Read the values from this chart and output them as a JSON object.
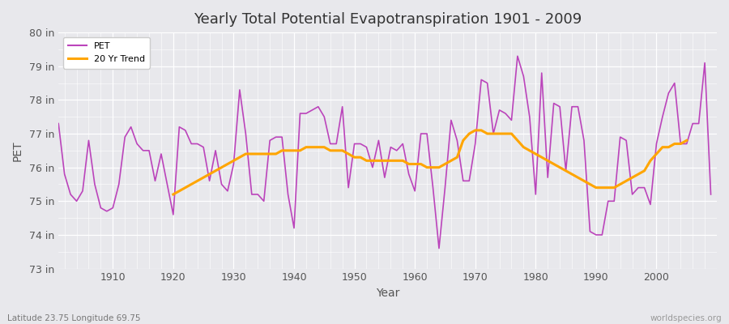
{
  "title": "Yearly Total Potential Evapotranspiration 1901 - 2009",
  "xlabel": "Year",
  "ylabel": "PET",
  "bottom_left_label": "Latitude 23.75 Longitude 69.75",
  "bottom_right_label": "worldspecies.org",
  "pet_color": "#BB44BB",
  "trend_color": "#FFA500",
  "background_color": "#E8E8EC",
  "fig_color": "#E8E8EC",
  "ylim": [
    73,
    80
  ],
  "yticks": [
    73,
    74,
    75,
    76,
    77,
    78,
    79,
    80
  ],
  "ytick_labels": [
    "73 in",
    "74 in",
    "75 in",
    "76 in",
    "77 in",
    "78 in",
    "79 in",
    "80 in"
  ],
  "xlim": [
    1901,
    2010
  ],
  "xticks": [
    1910,
    1920,
    1930,
    1940,
    1950,
    1960,
    1970,
    1980,
    1990,
    2000
  ],
  "years": [
    1901,
    1902,
    1903,
    1904,
    1905,
    1906,
    1907,
    1908,
    1909,
    1910,
    1911,
    1912,
    1913,
    1914,
    1915,
    1916,
    1917,
    1918,
    1919,
    1920,
    1921,
    1922,
    1923,
    1924,
    1925,
    1926,
    1927,
    1928,
    1929,
    1930,
    1931,
    1932,
    1933,
    1934,
    1935,
    1936,
    1937,
    1938,
    1939,
    1940,
    1941,
    1942,
    1943,
    1944,
    1945,
    1946,
    1947,
    1948,
    1949,
    1950,
    1951,
    1952,
    1953,
    1954,
    1955,
    1956,
    1957,
    1958,
    1959,
    1960,
    1961,
    1962,
    1963,
    1964,
    1965,
    1966,
    1967,
    1968,
    1969,
    1970,
    1971,
    1972,
    1973,
    1974,
    1975,
    1976,
    1977,
    1978,
    1979,
    1980,
    1981,
    1982,
    1983,
    1984,
    1985,
    1986,
    1987,
    1988,
    1989,
    1990,
    1991,
    1992,
    1993,
    1994,
    1995,
    1996,
    1997,
    1998,
    1999,
    2000,
    2001,
    2002,
    2003,
    2004,
    2005,
    2006,
    2007,
    2008,
    2009
  ],
  "pet_values": [
    77.3,
    75.8,
    75.2,
    75.0,
    75.3,
    76.8,
    75.5,
    74.8,
    74.7,
    74.8,
    75.5,
    76.9,
    77.2,
    76.7,
    76.5,
    76.5,
    75.6,
    76.4,
    75.5,
    74.6,
    77.2,
    77.1,
    76.7,
    76.7,
    76.6,
    75.6,
    76.5,
    75.5,
    75.3,
    76.1,
    78.3,
    77.0,
    75.2,
    75.2,
    75.0,
    76.8,
    76.9,
    76.9,
    75.2,
    74.2,
    77.6,
    77.6,
    77.7,
    77.8,
    77.5,
    76.7,
    76.7,
    77.8,
    75.4,
    76.7,
    76.7,
    76.6,
    76.0,
    76.8,
    75.7,
    76.6,
    76.5,
    76.7,
    75.8,
    75.3,
    77.0,
    77.0,
    75.4,
    73.6,
    75.4,
    77.4,
    76.8,
    75.6,
    75.6,
    76.7,
    78.6,
    78.5,
    77.0,
    77.7,
    77.6,
    77.4,
    79.3,
    78.7,
    77.5,
    75.2,
    78.8,
    75.7,
    77.9,
    77.8,
    75.9,
    77.8,
    77.8,
    76.8,
    74.1,
    74.0,
    74.0,
    75.0,
    75.0,
    76.9,
    76.8,
    75.2,
    75.4,
    75.4,
    74.9,
    76.7,
    77.5,
    78.2,
    78.5,
    76.7,
    76.7,
    77.3,
    77.3,
    79.1,
    75.2
  ],
  "trend_values": [
    null,
    null,
    null,
    null,
    null,
    null,
    null,
    null,
    null,
    null,
    null,
    null,
    null,
    null,
    null,
    null,
    null,
    null,
    null,
    75.2,
    75.3,
    75.4,
    75.5,
    75.6,
    75.7,
    75.8,
    75.9,
    76.0,
    76.1,
    76.2,
    76.3,
    76.4,
    76.4,
    76.4,
    76.4,
    76.4,
    76.4,
    76.5,
    76.5,
    76.5,
    76.5,
    76.6,
    76.6,
    76.6,
    76.6,
    76.5,
    76.5,
    76.5,
    76.4,
    76.3,
    76.3,
    76.2,
    76.2,
    76.2,
    76.2,
    76.2,
    76.2,
    76.2,
    76.1,
    76.1,
    76.1,
    76.0,
    76.0,
    76.0,
    76.1,
    76.2,
    76.3,
    76.8,
    77.0,
    77.1,
    77.1,
    77.0,
    77.0,
    77.0,
    77.0,
    77.0,
    76.8,
    76.6,
    76.5,
    76.4,
    76.3,
    76.2,
    76.1,
    76.0,
    75.9,
    75.8,
    75.7,
    75.6,
    75.5,
    75.4,
    75.4,
    75.4,
    75.4,
    75.5,
    75.6,
    75.7,
    75.8,
    75.9,
    76.2,
    76.4,
    76.6,
    76.6,
    76.7,
    76.7,
    76.8,
    null,
    null,
    null,
    null
  ]
}
